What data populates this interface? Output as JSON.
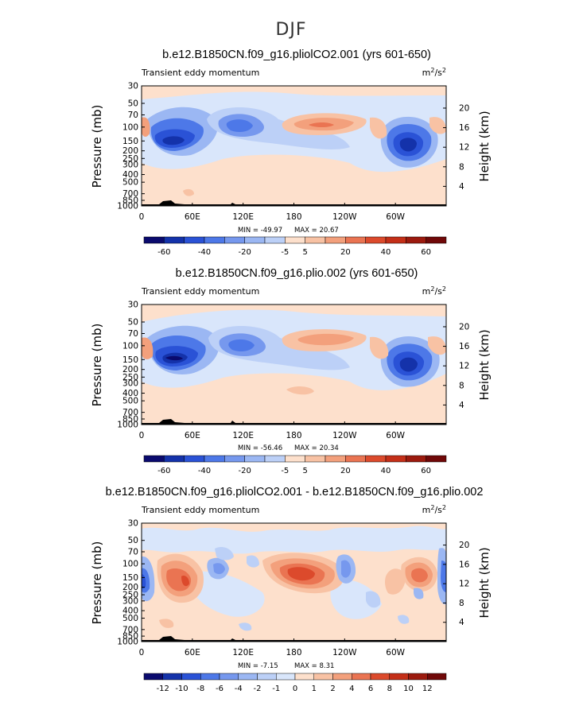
{
  "suptitle": "DJF",
  "chart_data": [
    {
      "type": "heatmap",
      "title": "b.e12.B1850CN.f09_g16.pliolCO2.001 (yrs 601-650)",
      "subtitle": "Transient eddy momentum",
      "units": "m",
      "units_sup": "2",
      "units_mid": "/s",
      "units_sup2": "2",
      "xlabel": "",
      "ylabel": "Pressure (mb)",
      "ylabel_right": "Height (km)",
      "x_ticks": [
        "0",
        "60E",
        "120E",
        "180",
        "120W",
        "60W"
      ],
      "y_ticks": [
        "30",
        "50",
        "70",
        "100",
        "150",
        "200",
        "250",
        "300",
        "400",
        "500",
        "700",
        "850",
        "1000"
      ],
      "y2_ticks": [
        "20",
        "16",
        "12",
        "8",
        "4"
      ],
      "min_label": "MIN = -49.97",
      "max_label": "MAX = 20.67",
      "min": -49.97,
      "max": 20.67,
      "colorbar_labels": [
        "-60",
        "-40",
        "-20",
        "-5",
        "5",
        "20",
        "40",
        "60"
      ],
      "colorbar_levels": [
        -70,
        -60,
        -50,
        -40,
        -30,
        -20,
        -10,
        -5,
        5,
        10,
        20,
        30,
        40,
        50,
        60,
        70
      ],
      "features": [
        {
          "lon": 35,
          "p": 150,
          "value": -50,
          "desc": "minimum"
        },
        {
          "lon": 115,
          "p": 110,
          "value": -25
        },
        {
          "lon": 205,
          "p": 100,
          "value": 20,
          "desc": "maximum"
        },
        {
          "lon": 300,
          "p": 160,
          "value": -42
        },
        {
          "lon": 0,
          "p": 100,
          "value": 12
        },
        {
          "lon": 270,
          "p": 100,
          "value": 12
        }
      ]
    },
    {
      "type": "heatmap",
      "title": "b.e12.B1850CN.f09_g16.plio.002 (yrs 601-650)",
      "subtitle": "Transient eddy momentum",
      "units": "m",
      "units_sup": "2",
      "units_mid": "/s",
      "units_sup2": "2",
      "xlabel": "",
      "ylabel": "Pressure (mb)",
      "ylabel_right": "Height (km)",
      "x_ticks": [
        "0",
        "60E",
        "120E",
        "180",
        "120W",
        "60W"
      ],
      "y_ticks": [
        "30",
        "50",
        "70",
        "100",
        "150",
        "200",
        "250",
        "300",
        "400",
        "500",
        "700",
        "850",
        "1000"
      ],
      "y2_ticks": [
        "20",
        "16",
        "12",
        "8",
        "4"
      ],
      "min_label": "MIN = -56.46",
      "max_label": "MAX = 20.34",
      "min": -56.46,
      "max": 20.34,
      "colorbar_labels": [
        "-60",
        "-40",
        "-20",
        "-5",
        "5",
        "20",
        "40",
        "60"
      ],
      "colorbar_levels": [
        -70,
        -60,
        -50,
        -40,
        -30,
        -20,
        -10,
        -5,
        5,
        10,
        20,
        30,
        40,
        50,
        60,
        70
      ],
      "features": [
        {
          "lon": 40,
          "p": 150,
          "value": -56,
          "desc": "minimum"
        },
        {
          "lon": 115,
          "p": 110,
          "value": -25
        },
        {
          "lon": 205,
          "p": 90,
          "value": 20,
          "desc": "maximum"
        },
        {
          "lon": 300,
          "p": 160,
          "value": -45
        },
        {
          "lon": 0,
          "p": 100,
          "value": 12
        },
        {
          "lon": 270,
          "p": 100,
          "value": 12
        }
      ]
    },
    {
      "type": "heatmap",
      "title": "b.e12.B1850CN.f09_g16.pliolCO2.001 - b.e12.B1850CN.f09_g16.plio.002",
      "subtitle": "Transient eddy momentum",
      "units": "m",
      "units_sup": "2",
      "units_mid": "/s",
      "units_sup2": "2",
      "xlabel": "",
      "ylabel": "Pressure (mb)",
      "ylabel_right": "Height (km)",
      "x_ticks": [
        "0",
        "60E",
        "120E",
        "180",
        "120W",
        "60W"
      ],
      "y_ticks": [
        "30",
        "50",
        "70",
        "100",
        "150",
        "200",
        "250",
        "300",
        "400",
        "500",
        "700",
        "850",
        "1000"
      ],
      "y2_ticks": [
        "20",
        "16",
        "12",
        "8",
        "4"
      ],
      "min_label": "MIN = -7.15",
      "max_label": "MAX = 8.31",
      "min": -7.15,
      "max": 8.31,
      "colorbar_labels": [
        "-12",
        "-10",
        "-8",
        "-6",
        "-4",
        "-2",
        "-1",
        "0",
        "1",
        "2",
        "4",
        "6",
        "8",
        "10",
        "12"
      ],
      "colorbar_levels": [
        -14,
        -12,
        -10,
        -8,
        -6,
        -4,
        -2,
        -1,
        0,
        1,
        2,
        4,
        6,
        8,
        10,
        12,
        14
      ],
      "features": [
        {
          "lon": 2,
          "p": 180,
          "value": -7,
          "desc": "minimum"
        },
        {
          "lon": 40,
          "p": 170,
          "value": 6
        },
        {
          "lon": 90,
          "p": 150,
          "value": -3
        },
        {
          "lon": 200,
          "p": 140,
          "value": 8.3,
          "desc": "maximum"
        },
        {
          "lon": 255,
          "p": 140,
          "value": -4
        },
        {
          "lon": 335,
          "p": 150,
          "value": 5.5
        },
        {
          "lon": 358,
          "p": 170,
          "value": -5
        }
      ]
    }
  ],
  "colors": {
    "palette": [
      "#0a0a6e",
      "#1432aa",
      "#2a52d6",
      "#4d78e8",
      "#7698ee",
      "#9bb7f3",
      "#bcd0f7",
      "#d9e6fb",
      "#fde0cc",
      "#f8c2a4",
      "#f3a07c",
      "#ea7452",
      "#dc4a2c",
      "#c42f18",
      "#9c1a0e",
      "#700808"
    ],
    "background_fill": "#fde0cc",
    "topography": "#000000"
  }
}
